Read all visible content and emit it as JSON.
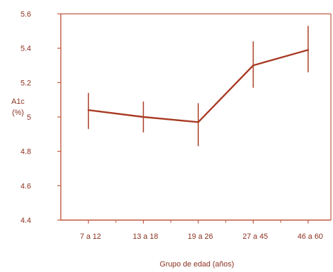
{
  "chart_data": {
    "type": "line",
    "title": "",
    "xlabel": "Grupo de edad (años)",
    "ylabel_line1": "A1c",
    "ylabel_line2": "(%)",
    "categories": [
      "7 a 12",
      "13 a 18",
      "19 a 26",
      "27 a 45",
      "46 a 60"
    ],
    "series": [
      {
        "values": [
          5.04,
          5.0,
          4.97,
          5.3,
          5.39
        ],
        "error_low": [
          4.93,
          4.91,
          4.83,
          5.17,
          5.26
        ],
        "error_high": [
          5.14,
          5.09,
          5.08,
          5.44,
          5.53
        ]
      }
    ],
    "ylim": [
      4.4,
      5.6
    ],
    "yticks": [
      4.4,
      4.6,
      4.8,
      5.0,
      5.2,
      5.4,
      5.6
    ],
    "ytick_labels": [
      "4.4",
      "4.6",
      "4.8",
      "5",
      "5.2",
      "5.4",
      "5.6"
    ],
    "grid": false,
    "legend": "none",
    "colors": {
      "axis": "#c0573e",
      "line": "#a83a24",
      "text": "#8b2f1e"
    }
  }
}
